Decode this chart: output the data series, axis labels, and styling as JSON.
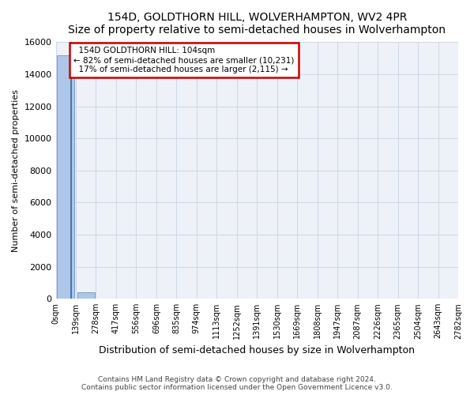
{
  "title": "154D, GOLDTHORN HILL, WOLVERHAMPTON, WV2 4PR",
  "subtitle": "Size of property relative to semi-detached houses in Wolverhampton",
  "xlabel": "Distribution of semi-detached houses by size in Wolverhampton",
  "ylabel": "Number of semi-detached properties",
  "footer_line1": "Contains HM Land Registry data © Crown copyright and database right 2024.",
  "footer_line2": "Contains public sector information licensed under the Open Government Licence v3.0.",
  "property_size": 104,
  "property_label": "154D GOLDTHORN HILL: 104sqm",
  "pct_smaller": 82,
  "count_smaller": 10231,
  "pct_larger": 17,
  "count_larger": 2115,
  "bin_edges": [
    0,
    139,
    278,
    417,
    556,
    696,
    835,
    974,
    1113,
    1252,
    1391,
    1530,
    1669,
    1808,
    1947,
    2087,
    2226,
    2365,
    2504,
    2643,
    2782
  ],
  "bin_labels": [
    "0sqm",
    "139sqm",
    "278sqm",
    "417sqm",
    "556sqm",
    "696sqm",
    "835sqm",
    "974sqm",
    "1113sqm",
    "1252sqm",
    "1391sqm",
    "1530sqm",
    "1669sqm",
    "1808sqm",
    "1947sqm",
    "2087sqm",
    "2226sqm",
    "2365sqm",
    "2504sqm",
    "2643sqm",
    "2782sqm"
  ],
  "bar_values": [
    15200,
    390,
    30,
    10,
    5,
    3,
    2,
    1,
    1,
    1,
    1,
    0,
    0,
    0,
    0,
    0,
    0,
    0,
    0,
    0
  ],
  "bar_color": "#aec6e8",
  "annotation_box_color": "#cc0000",
  "ylim": [
    0,
    16000
  ],
  "yticks": [
    0,
    2000,
    4000,
    6000,
    8000,
    10000,
    12000,
    14000,
    16000
  ],
  "grid_color": "#d0d8e8",
  "background_color": "#eef2f8",
  "bar_edge_color": "#5588bb"
}
